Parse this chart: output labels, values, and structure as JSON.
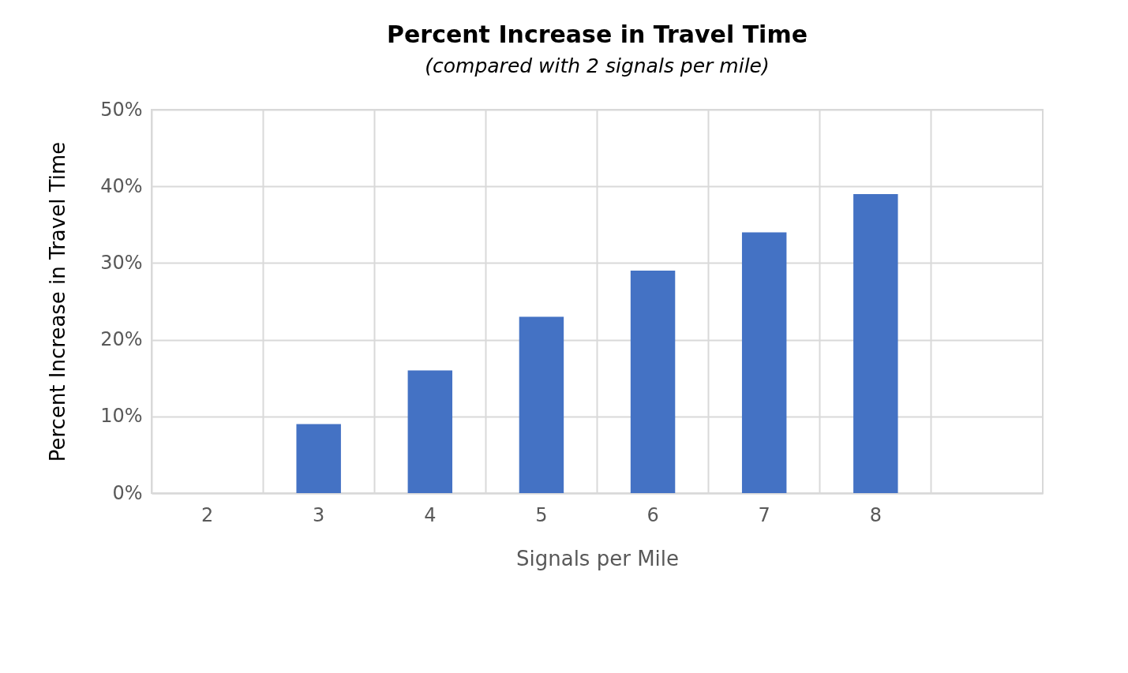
{
  "chart_data": {
    "type": "bar",
    "title": "Percent Increase in Travel Time",
    "subtitle": "(compared with 2 signals per mile)",
    "xlabel": "Signals per Mile",
    "ylabel": "Percent Increase in Travel Time",
    "categories": [
      "2",
      "3",
      "4",
      "5",
      "6",
      "7",
      "8",
      null
    ],
    "values": [
      0,
      9,
      16,
      23,
      29,
      34,
      39,
      null
    ],
    "color": "#4472c4",
    "ylim": [
      0,
      50
    ],
    "yticks": [
      {
        "value": 0,
        "label": "0%"
      },
      {
        "value": 10,
        "label": "10%"
      },
      {
        "value": 20,
        "label": "20%"
      },
      {
        "value": 30,
        "label": "30%"
      },
      {
        "value": 40,
        "label": "40%"
      },
      {
        "value": 50,
        "label": "50%"
      }
    ],
    "grid": true
  }
}
